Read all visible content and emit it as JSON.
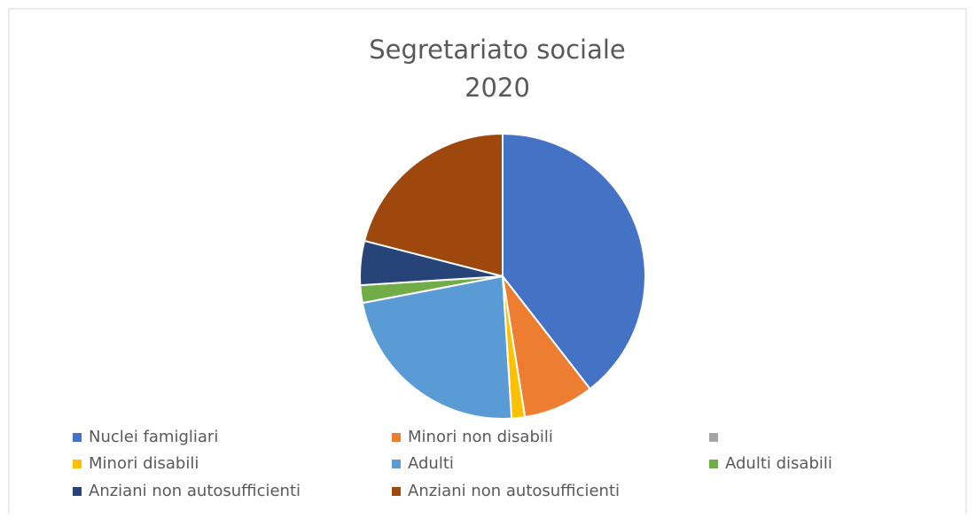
{
  "chart_data": {
    "type": "pie",
    "title": "Segretariato sociale",
    "subtitle": "2020",
    "categories": [
      "Nuclei famigliari",
      "Minori non disabili",
      null,
      "Minori disabili",
      "Adulti",
      "Adulti disabili",
      "Anziani non autosufficienti",
      "Anziani non autosufficienti"
    ],
    "values": [
      39.5,
      8,
      0,
      1.5,
      23,
      2,
      5,
      21
    ],
    "colors": [
      "#4472c4",
      "#ed7d31",
      "#a5a5a5",
      "#ffc000",
      "#5b9bd5",
      "#70ad47",
      "#264478",
      "#9e480e"
    ],
    "legend": "bottom"
  }
}
